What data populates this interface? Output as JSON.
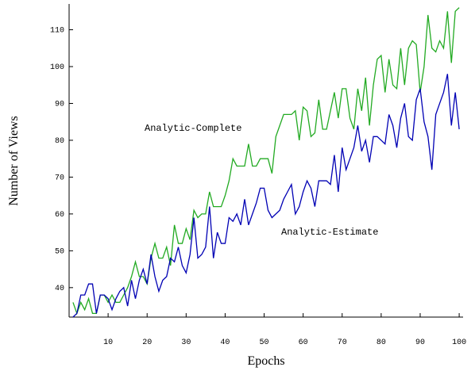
{
  "chart_data": {
    "type": "line",
    "x_label": "Epochs",
    "y_label": "Number of Views",
    "x": [
      1,
      2,
      3,
      4,
      5,
      6,
      7,
      8,
      9,
      10,
      11,
      12,
      13,
      14,
      15,
      16,
      17,
      18,
      19,
      20,
      21,
      22,
      23,
      24,
      25,
      26,
      27,
      28,
      29,
      30,
      31,
      32,
      33,
      34,
      35,
      36,
      37,
      38,
      39,
      40,
      41,
      42,
      43,
      44,
      45,
      46,
      47,
      48,
      49,
      50,
      51,
      52,
      53,
      54,
      55,
      56,
      57,
      58,
      59,
      60,
      61,
      62,
      63,
      64,
      65,
      66,
      67,
      68,
      69,
      70,
      71,
      72,
      73,
      74,
      75,
      76,
      77,
      78,
      79,
      80,
      81,
      82,
      83,
      84,
      85,
      86,
      87,
      88,
      89,
      90,
      91,
      92,
      93,
      94,
      95,
      96,
      97,
      98,
      99,
      100
    ],
    "series": [
      {
        "name": "Analytic-Complete",
        "color": "#22aa22",
        "values": [
          36,
          33,
          36,
          34,
          37,
          33,
          33,
          38,
          38,
          36,
          38,
          36,
          36,
          38,
          40,
          43,
          47,
          43,
          43,
          41,
          48,
          52,
          48,
          48,
          51,
          46,
          57,
          52,
          52,
          56,
          53,
          61,
          59,
          60,
          60,
          66,
          62,
          62,
          62,
          65,
          69,
          75,
          73,
          73,
          73,
          79,
          73,
          73,
          75,
          75,
          75,
          71,
          81,
          84,
          87,
          87,
          87,
          88,
          80,
          89,
          88,
          81,
          82,
          91,
          83,
          83,
          88,
          93,
          86,
          94,
          94,
          86,
          83,
          94,
          88,
          97,
          84,
          95,
          102,
          103,
          93,
          102,
          95,
          94,
          105,
          95,
          105,
          107,
          106,
          93,
          100,
          114,
          105,
          104,
          107,
          105,
          115,
          101,
          115,
          116
        ]
      },
      {
        "name": "Analytic-Estimate",
        "color": "#0000b4",
        "values": [
          32,
          33,
          38,
          38,
          41,
          41,
          33,
          38,
          38,
          37,
          34,
          37,
          39,
          40,
          35,
          42,
          37,
          42,
          45,
          41,
          49,
          43,
          39,
          42,
          43,
          48,
          47,
          51,
          46,
          44,
          49,
          59,
          48,
          49,
          51,
          62,
          48,
          55,
          52,
          52,
          59,
          58,
          60,
          57,
          64,
          57,
          60,
          63,
          67,
          67,
          61,
          59,
          60,
          61,
          64,
          66,
          68,
          60,
          62,
          66,
          69,
          67,
          62,
          69,
          69,
          69,
          68,
          76,
          66,
          78,
          72,
          75,
          78,
          84,
          77,
          80,
          74,
          81,
          81,
          80,
          79,
          87,
          84,
          78,
          86,
          90,
          81,
          80,
          91,
          94,
          85,
          81,
          72,
          87,
          90,
          93,
          98,
          84,
          93,
          83
        ]
      }
    ],
    "xlim": [
      0,
      101
    ],
    "ylim": [
      32,
      117
    ],
    "xticks": [
      10,
      20,
      30,
      40,
      50,
      60,
      70,
      80,
      90,
      100
    ],
    "yticks": [
      40,
      50,
      60,
      70,
      80,
      90,
      100,
      110
    ]
  }
}
